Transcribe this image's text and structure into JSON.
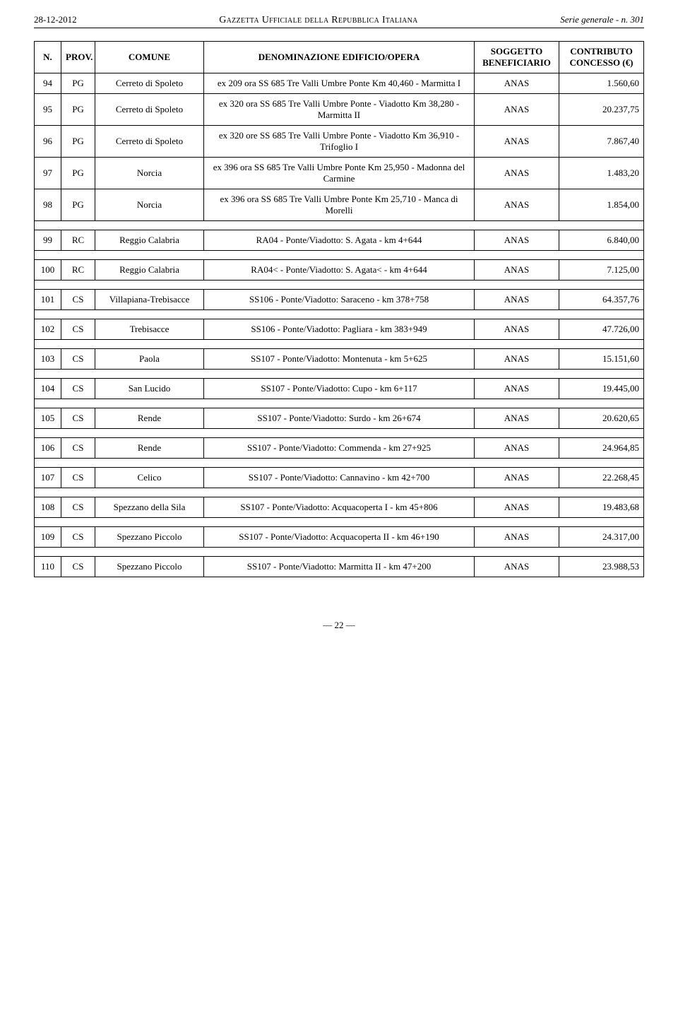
{
  "header": {
    "date": "28-12-2012",
    "center": "Gazzetta Ufficiale della Repubblica Italiana",
    "right": "Serie generale - n. 301"
  },
  "columns": {
    "n": "N.",
    "prov": "PROV.",
    "comune": "COMUNE",
    "den": "DENOMINAZIONE EDIFICIO/OPERA",
    "sog": "SOGGETTO BENEFICIARIO",
    "contr": "CONTRIBUTO CONCESSO (€)"
  },
  "groups": [
    {
      "rows": [
        {
          "n": "94",
          "prov": "PG",
          "comune": "Cerreto di Spoleto",
          "den": "ex 209 ora SS 685 Tre Valli Umbre Ponte Km 40,460 - Marmitta I",
          "sog": "ANAS",
          "contr": "1.560,60"
        },
        {
          "n": "95",
          "prov": "PG",
          "comune": "Cerreto di Spoleto",
          "den": "ex 320 ora SS 685 Tre Valli Umbre Ponte - Viadotto Km 38,280 - Marmitta II",
          "sog": "ANAS",
          "contr": "20.237,75"
        },
        {
          "n": "96",
          "prov": "PG",
          "comune": "Cerreto di Spoleto",
          "den": "ex 320 ore SS 685 Tre Valli Umbre Ponte - Viadotto Km 36,910 - Trifoglio I",
          "sog": "ANAS",
          "contr": "7.867,40"
        },
        {
          "n": "97",
          "prov": "PG",
          "comune": "Norcia",
          "den": "ex 396 ora SS 685 Tre Valli Umbre Ponte  Km 25,950 - Madonna del Carmine",
          "sog": "ANAS",
          "contr": "1.483,20"
        },
        {
          "n": "98",
          "prov": "PG",
          "comune": "Norcia",
          "den": "ex 396 ora SS 685 Tre Valli Umbre Ponte  Km 25,710 - Manca di Morelli",
          "sog": "ANAS",
          "contr": "1.854,00"
        }
      ]
    },
    {
      "rows": [
        {
          "n": "99",
          "prov": "RC",
          "comune": "Reggio Calabria",
          "den": "RA04 - Ponte/Viadotto: S. Agata - km 4+644",
          "sog": "ANAS",
          "contr": "6.840,00"
        }
      ]
    },
    {
      "rows": [
        {
          "n": "100",
          "prov": "RC",
          "comune": "Reggio Calabria",
          "den": "RA04< - Ponte/Viadotto: S. Agata< - km 4+644",
          "sog": "ANAS",
          "contr": "7.125,00"
        }
      ]
    },
    {
      "rows": [
        {
          "n": "101",
          "prov": "CS",
          "comune": "Villapiana-Trebisacce",
          "den": "SS106 - Ponte/Viadotto: Saraceno - km 378+758",
          "sog": "ANAS",
          "contr": "64.357,76"
        }
      ]
    },
    {
      "rows": [
        {
          "n": "102",
          "prov": "CS",
          "comune": "Trebisacce",
          "den": "SS106 - Ponte/Viadotto: Pagliara - km 383+949",
          "sog": "ANAS",
          "contr": "47.726,00"
        }
      ]
    },
    {
      "rows": [
        {
          "n": "103",
          "prov": "CS",
          "comune": "Paola",
          "den": "SS107 - Ponte/Viadotto: Montenuta - km 5+625",
          "sog": "ANAS",
          "contr": "15.151,60"
        }
      ]
    },
    {
      "rows": [
        {
          "n": "104",
          "prov": "CS",
          "comune": "San Lucido",
          "den": "SS107 - Ponte/Viadotto: Cupo - km 6+117",
          "sog": "ANAS",
          "contr": "19.445,00"
        }
      ]
    },
    {
      "rows": [
        {
          "n": "105",
          "prov": "CS",
          "comune": "Rende",
          "den": "SS107 - Ponte/Viadotto: Surdo - km 26+674",
          "sog": "ANAS",
          "contr": "20.620,65"
        }
      ]
    },
    {
      "rows": [
        {
          "n": "106",
          "prov": "CS",
          "comune": "Rende",
          "den": "SS107 - Ponte/Viadotto: Commenda - km 27+925",
          "sog": "ANAS",
          "contr": "24.964,85"
        }
      ]
    },
    {
      "rows": [
        {
          "n": "107",
          "prov": "CS",
          "comune": "Celico",
          "den": "SS107 - Ponte/Viadotto: Cannavino - km 42+700",
          "sog": "ANAS",
          "contr": "22.268,45"
        }
      ]
    },
    {
      "rows": [
        {
          "n": "108",
          "prov": "CS",
          "comune": "Spezzano della Sila",
          "den": "SS107 - Ponte/Viadotto: Acquacoperta I - km 45+806",
          "sog": "ANAS",
          "contr": "19.483,68"
        }
      ]
    },
    {
      "rows": [
        {
          "n": "109",
          "prov": "CS",
          "comune": "Spezzano Piccolo",
          "den": "SS107 - Ponte/Viadotto: Acquacoperta II - km 46+190",
          "sog": "ANAS",
          "contr": "24.317,00"
        }
      ]
    },
    {
      "rows": [
        {
          "n": "110",
          "prov": "CS",
          "comune": "Spezzano Piccolo",
          "den": "SS107 - Ponte/Viadotto: Marmitta II - km 47+200",
          "sog": "ANAS",
          "contr": "23.988,53"
        }
      ]
    }
  ],
  "footer": {
    "page": "— 22 —"
  }
}
